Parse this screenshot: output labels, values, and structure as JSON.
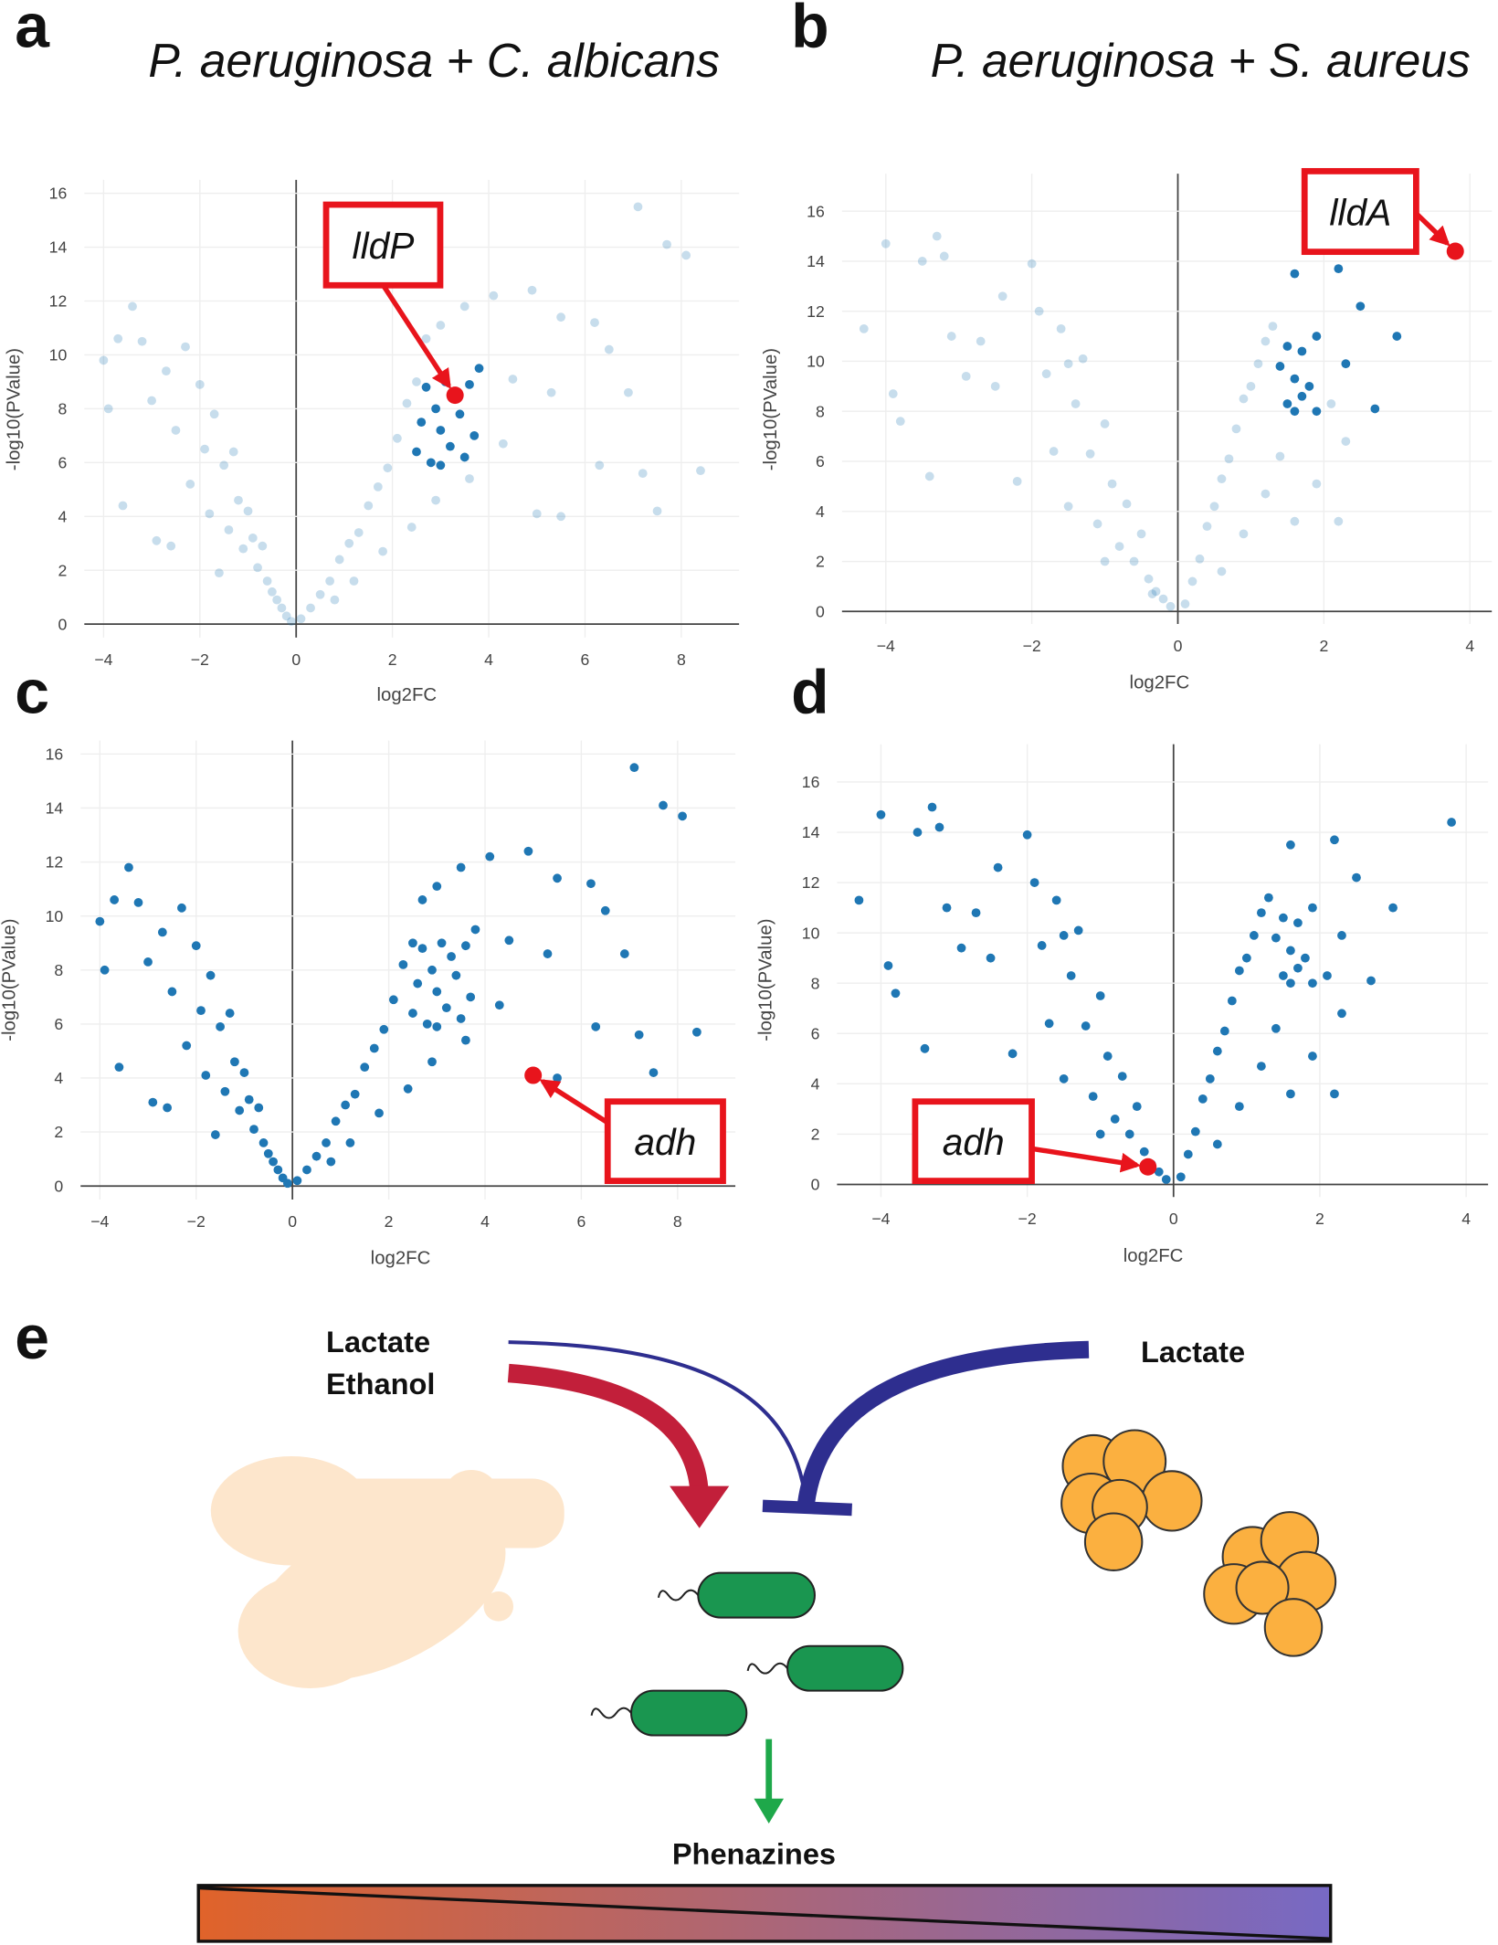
{
  "chart_data": [
    {
      "type": "scatter",
      "panel": "a",
      "title": "P. aeruginosa + C. albicans",
      "xlabel": "log2FC",
      "ylabel": "-log10(PValue)",
      "xlim": [
        -4.4,
        9.2
      ],
      "ylim": [
        -0.5,
        16.5
      ],
      "xticks": [
        {
          "value": -4,
          "label": "−4"
        },
        {
          "value": -2,
          "label": "−2"
        },
        0,
        2,
        4,
        6,
        8
      ],
      "yticks": [
        0,
        2,
        4,
        6,
        8,
        10,
        12,
        14,
        16
      ],
      "grid": true,
      "series": [
        {
          "color": "#1f77b4",
          "opacity": 0.25,
          "x": [
            -4,
            -3.9,
            -3.7,
            -3.4,
            -3.2,
            -3.0,
            -2.9,
            -2.7,
            -2.5,
            -2.3,
            -2.2,
            -2.0,
            -1.9,
            -1.8,
            -1.7,
            -1.5,
            -1.4,
            -1.3,
            -1.2,
            -1.1,
            -1.0,
            -0.9,
            -0.8,
            -0.7,
            -0.6,
            -0.5,
            -0.4,
            -0.3,
            -0.2,
            -0.1,
            -3.6,
            -2.6,
            -1.6,
            0.1,
            0.3,
            0.5,
            0.7,
            0.9,
            1.1,
            1.3,
            1.5,
            1.7,
            1.9,
            2.1,
            2.3,
            2.5,
            2.7,
            3.0,
            3.5,
            4.1,
            4.9,
            5.5,
            6.2,
            6.5,
            7.1,
            7.7,
            8.1,
            6.9,
            5.3,
            4.5,
            4.3,
            5.5,
            6.3,
            7.2,
            7.5,
            8.4,
            1.2,
            1.8,
            2.4,
            2.9,
            3.6,
            0.8,
            5.0
          ],
          "values": [
            9.8,
            8,
            10.6,
            11.8,
            10.5,
            8.3,
            3.1,
            9.4,
            7.2,
            10.3,
            5.2,
            8.9,
            6.5,
            4.1,
            7.8,
            5.9,
            3.5,
            6.4,
            4.6,
            2.8,
            4.2,
            3.2,
            2.1,
            2.9,
            1.6,
            1.2,
            0.9,
            0.6,
            0.3,
            0.1,
            4.4,
            2.9,
            1.9,
            0.2,
            0.6,
            1.1,
            1.6,
            2.4,
            3.0,
            3.4,
            4.4,
            5.1,
            5.8,
            6.9,
            8.2,
            9.0,
            10.6,
            11.1,
            11.8,
            12.2,
            12.4,
            11.4,
            11.2,
            10.2,
            15.5,
            14.1,
            13.7,
            8.6,
            8.6,
            9.1,
            6.7,
            4.0,
            5.9,
            5.6,
            4.2,
            5.7,
            1.6,
            2.7,
            3.6,
            4.6,
            5.4,
            0.9,
            4.1
          ]
        },
        {
          "color": "#1f77b4",
          "opacity": 1,
          "x": [
            2.5,
            2.6,
            2.8,
            2.9,
            3.0,
            3.1,
            3.2,
            3.4,
            3.5,
            3.6,
            3.7,
            3.8,
            2.7,
            3.0
          ],
          "values": [
            6.4,
            7.5,
            6.0,
            8.0,
            7.2,
            9.0,
            6.6,
            7.8,
            6.2,
            8.9,
            7.0,
            9.5,
            8.8,
            5.9
          ]
        }
      ],
      "annotations": [
        {
          "text": "lldP",
          "x": 3.3,
          "y": 8.5,
          "color": "#e8141c"
        }
      ]
    },
    {
      "type": "scatter",
      "panel": "b",
      "title": "P. aeruginosa + S. aureus",
      "xlabel": "log2FC",
      "ylabel": "-log10(PValue)",
      "xlim": [
        -4.6,
        4.3
      ],
      "ylim": [
        -0.5,
        17.5
      ],
      "xticks": [
        {
          "value": -4,
          "label": "−4"
        },
        {
          "value": -2,
          "label": "−2"
        },
        0,
        2,
        4
      ],
      "yticks": [
        0,
        2,
        4,
        6,
        8,
        10,
        12,
        14,
        16
      ],
      "grid": true,
      "series": [
        {
          "color": "#1f77b4",
          "opacity": 0.25,
          "x": [
            -4.3,
            -4.0,
            -3.9,
            -3.8,
            -3.5,
            -3.4,
            -3.3,
            -3.2,
            -3.1,
            -2.9,
            -2.7,
            -2.5,
            -2.2,
            -2.0,
            -1.9,
            -1.8,
            -1.7,
            -1.6,
            -1.5,
            -1.4,
            -1.3,
            -1.2,
            -1.1,
            -1.0,
            -0.9,
            -0.8,
            -0.7,
            -0.6,
            -0.5,
            -0.4,
            -0.3,
            -0.2,
            -0.1,
            -2.4,
            -1.5,
            -1.0,
            0.1,
            0.2,
            0.3,
            0.4,
            0.5,
            0.6,
            0.7,
            0.8,
            0.9,
            1.0,
            1.1,
            1.2,
            1.3,
            0.6,
            0.9,
            1.2,
            1.4,
            1.6,
            1.9,
            2.2,
            2.3,
            2.1,
            -0.35
          ],
          "values": [
            11.3,
            14.7,
            8.7,
            7.6,
            14.0,
            5.4,
            15.0,
            14.2,
            11.0,
            9.4,
            10.8,
            9.0,
            5.2,
            13.9,
            12.0,
            9.5,
            6.4,
            11.3,
            4.2,
            8.3,
            10.1,
            6.3,
            3.5,
            7.5,
            5.1,
            2.6,
            4.3,
            2.0,
            3.1,
            1.3,
            0.8,
            0.5,
            0.2,
            12.6,
            9.9,
            2.0,
            0.3,
            1.2,
            2.1,
            3.4,
            4.2,
            5.3,
            6.1,
            7.3,
            8.5,
            9.0,
            9.9,
            10.8,
            11.4,
            1.6,
            3.1,
            4.7,
            6.2,
            3.6,
            5.1,
            3.6,
            6.8,
            8.3,
            0.7
          ]
        },
        {
          "color": "#1f77b4",
          "opacity": 1,
          "x": [
            1.4,
            1.5,
            1.5,
            1.6,
            1.6,
            1.7,
            1.7,
            1.8,
            1.9,
            1.9,
            2.2,
            2.3,
            2.5,
            2.7,
            3.0,
            1.6
          ],
          "values": [
            9.8,
            10.6,
            8.3,
            9.3,
            13.5,
            8.6,
            10.4,
            9.0,
            11.0,
            8.0,
            13.7,
            9.9,
            12.2,
            8.1,
            11.0,
            8.0
          ]
        }
      ],
      "annotations": [
        {
          "text": "lldA",
          "x": 3.8,
          "y": 14.4,
          "color": "#e8141c"
        }
      ]
    },
    {
      "type": "scatter",
      "panel": "c",
      "xlabel": "log2FC",
      "ylabel": "-log10(PValue)",
      "xlim": [
        -4.4,
        9.2
      ],
      "ylim": [
        -0.5,
        16.5
      ],
      "xticks": [
        {
          "value": -4,
          "label": "−4"
        },
        {
          "value": -2,
          "label": "−2"
        },
        0,
        2,
        4,
        6,
        8
      ],
      "yticks": [
        0,
        2,
        4,
        6,
        8,
        10,
        12,
        14,
        16
      ],
      "grid": true,
      "series": [
        {
          "color": "#1f77b4",
          "opacity": 1,
          "x": [
            -4,
            -3.9,
            -3.7,
            -3.4,
            -3.2,
            -3.0,
            -2.9,
            -2.7,
            -2.5,
            -2.3,
            -2.2,
            -2.0,
            -1.9,
            -1.8,
            -1.7,
            -1.5,
            -1.4,
            -1.3,
            -1.2,
            -1.1,
            -1.0,
            -0.9,
            -0.8,
            -0.7,
            -0.6,
            -0.5,
            -0.4,
            -0.3,
            -0.2,
            -0.1,
            -3.6,
            -2.6,
            -1.6,
            0.1,
            0.3,
            0.5,
            0.7,
            0.9,
            1.1,
            1.3,
            1.5,
            1.7,
            1.9,
            2.1,
            2.3,
            2.5,
            2.7,
            3.0,
            3.5,
            4.1,
            4.9,
            5.5,
            6.2,
            6.5,
            7.1,
            7.7,
            8.1,
            6.9,
            5.3,
            4.5,
            4.3,
            5.5,
            6.3,
            7.2,
            7.5,
            8.4,
            1.2,
            1.8,
            2.4,
            2.9,
            3.6,
            0.8
          ],
          "values": [
            9.8,
            8,
            10.6,
            11.8,
            10.5,
            8.3,
            3.1,
            9.4,
            7.2,
            10.3,
            5.2,
            8.9,
            6.5,
            4.1,
            7.8,
            5.9,
            3.5,
            6.4,
            4.6,
            2.8,
            4.2,
            3.2,
            2.1,
            2.9,
            1.6,
            1.2,
            0.9,
            0.6,
            0.3,
            0.1,
            4.4,
            2.9,
            1.9,
            0.2,
            0.6,
            1.1,
            1.6,
            2.4,
            3.0,
            3.4,
            4.4,
            5.1,
            5.8,
            6.9,
            8.2,
            9.0,
            10.6,
            11.1,
            11.8,
            12.2,
            12.4,
            11.4,
            11.2,
            10.2,
            15.5,
            14.1,
            13.7,
            8.6,
            8.6,
            9.1,
            6.7,
            4.0,
            5.9,
            5.6,
            4.2,
            5.7,
            1.6,
            2.7,
            3.6,
            4.6,
            5.4,
            0.9
          ]
        },
        {
          "color": "#1f77b4",
          "opacity": 1,
          "x": [
            2.5,
            2.6,
            2.8,
            2.9,
            3.0,
            3.1,
            3.2,
            3.4,
            3.5,
            3.6,
            3.7,
            3.8,
            2.7,
            3.0,
            3.3
          ],
          "values": [
            6.4,
            7.5,
            6.0,
            8.0,
            7.2,
            9.0,
            6.6,
            7.8,
            6.2,
            8.9,
            7.0,
            9.5,
            8.8,
            5.9,
            8.5
          ]
        }
      ],
      "annotations": [
        {
          "text": "adh",
          "x": 5.0,
          "y": 4.1,
          "color": "#e8141c"
        }
      ]
    },
    {
      "type": "scatter",
      "panel": "d",
      "xlabel": "log2FC",
      "ylabel": "-log10(PValue)",
      "xlim": [
        -4.6,
        4.3
      ],
      "ylim": [
        -0.5,
        17.5
      ],
      "xticks": [
        {
          "value": -4,
          "label": "−4"
        },
        {
          "value": -2,
          "label": "−2"
        },
        0,
        2,
        4
      ],
      "yticks": [
        0,
        2,
        4,
        6,
        8,
        10,
        12,
        14,
        16
      ],
      "grid": true,
      "series": [
        {
          "color": "#1f77b4",
          "opacity": 1,
          "x": [
            -4.3,
            -4.0,
            -3.9,
            -3.8,
            -3.5,
            -3.4,
            -3.3,
            -3.2,
            -3.1,
            -2.9,
            -2.7,
            -2.5,
            -2.2,
            -2.0,
            -1.9,
            -1.8,
            -1.7,
            -1.6,
            -1.5,
            -1.4,
            -1.3,
            -1.2,
            -1.1,
            -1.0,
            -0.9,
            -0.8,
            -0.7,
            -0.6,
            -0.5,
            -0.4,
            -0.3,
            -0.2,
            -0.1,
            -2.4,
            -1.5,
            -1.0,
            0.1,
            0.2,
            0.3,
            0.4,
            0.5,
            0.6,
            0.7,
            0.8,
            0.9,
            1.0,
            1.1,
            1.2,
            1.3,
            0.6,
            0.9,
            1.2,
            1.4,
            1.6,
            1.9,
            2.2,
            2.3,
            2.1
          ],
          "values": [
            11.3,
            14.7,
            8.7,
            7.6,
            14.0,
            5.4,
            15.0,
            14.2,
            11.0,
            9.4,
            10.8,
            9.0,
            5.2,
            13.9,
            12.0,
            9.5,
            6.4,
            11.3,
            4.2,
            8.3,
            10.1,
            6.3,
            3.5,
            7.5,
            5.1,
            2.6,
            4.3,
            2.0,
            3.1,
            1.3,
            0.8,
            0.5,
            0.2,
            12.6,
            9.9,
            2.0,
            0.3,
            1.2,
            2.1,
            3.4,
            4.2,
            5.3,
            6.1,
            7.3,
            8.5,
            9.0,
            9.9,
            10.8,
            11.4,
            1.6,
            3.1,
            4.7,
            6.2,
            3.6,
            5.1,
            3.6,
            6.8,
            8.3
          ]
        },
        {
          "color": "#1f77b4",
          "opacity": 1,
          "x": [
            1.4,
            1.5,
            1.5,
            1.6,
            1.6,
            1.7,
            1.7,
            1.8,
            1.9,
            1.9,
            2.2,
            2.3,
            2.5,
            2.7,
            3.0,
            1.6,
            3.8
          ],
          "values": [
            9.8,
            10.6,
            8.3,
            9.3,
            13.5,
            8.6,
            10.4,
            9.0,
            11.0,
            8.0,
            13.7,
            9.9,
            12.2,
            8.1,
            11.0,
            8.0,
            14.4
          ]
        }
      ],
      "annotations": [
        {
          "text": "adh",
          "x": -0.35,
          "y": 0.7,
          "color": "#e8141c"
        }
      ]
    }
  ],
  "diagram": {
    "panel": "e",
    "left_labels": [
      "Lactate",
      "Ethanol"
    ],
    "right_label": "Lactate",
    "product": "Phenazines"
  }
}
